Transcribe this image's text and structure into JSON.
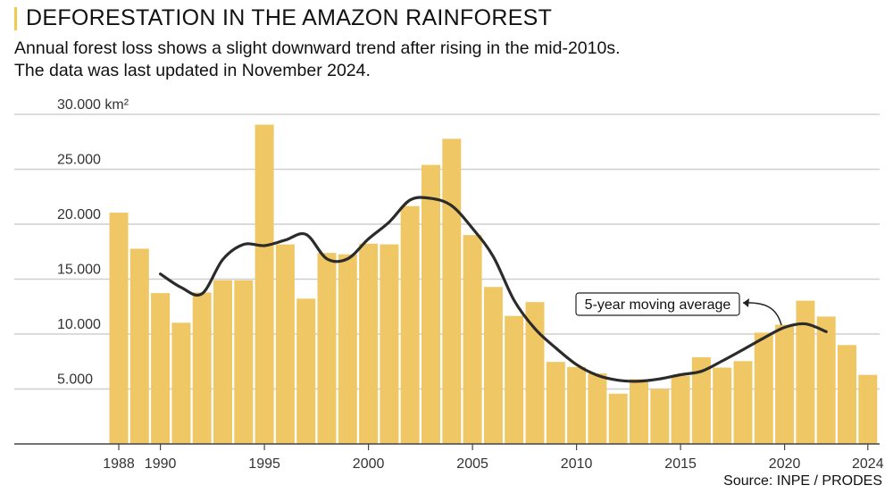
{
  "title": "DEFORESTATION IN THE AMAZON RAINFOREST",
  "subtitle_lines": [
    "Annual forest loss shows a slight downward trend after rising in the mid-2010s.",
    "The data was last updated in November 2024."
  ],
  "source": "Source: INPE / PRODES",
  "colors": {
    "bar": "#efc865",
    "line": "#2b2b2b",
    "grid": "#cfcfcf",
    "accent": "#f2c94c"
  },
  "chart_data": {
    "type": "bar",
    "x": [
      1988,
      1989,
      1990,
      1991,
      1992,
      1993,
      1994,
      1995,
      1996,
      1997,
      1998,
      1999,
      2000,
      2001,
      2002,
      2003,
      2004,
      2005,
      2006,
      2007,
      2008,
      2009,
      2010,
      2011,
      2012,
      2013,
      2014,
      2015,
      2016,
      2017,
      2018,
      2019,
      2020,
      2021,
      2022,
      2023,
      2024
    ],
    "values": [
      21050,
      17770,
      13730,
      11030,
      13786,
      14896,
      14896,
      29059,
      18161,
      13227,
      17383,
      17259,
      18226,
      18165,
      21651,
      25396,
      27772,
      19014,
      14286,
      11651,
      12911,
      7464,
      7000,
      6418,
      4571,
      5891,
      5012,
      6207,
      7893,
      6947,
      7536,
      10129,
      10851,
      13038,
      11594,
      9001,
      6288
    ],
    "series": [
      {
        "values": [
          21050,
          17770,
          13730,
          11030,
          13786,
          14896,
          14896,
          29059,
          18161,
          13227,
          17383,
          17259,
          18226,
          18165,
          21651,
          25396,
          27772,
          19014,
          14286,
          11651,
          12911,
          7464,
          7000,
          6418,
          4571,
          5891,
          5012,
          6207,
          7893,
          6947,
          7536,
          10129,
          10851,
          13038,
          11594,
          9001,
          6288
        ]
      },
      {
        "name": "5-year moving average",
        "x": [
          1990,
          1991,
          1992,
          1993,
          1994,
          1995,
          1996,
          1997,
          1998,
          1999,
          2000,
          2001,
          2002,
          2003,
          2004,
          2005,
          2006,
          2007,
          2008,
          2009,
          2010,
          2011,
          2012,
          2013,
          2014,
          2015,
          2016,
          2017,
          2018,
          2019,
          2020,
          2021,
          2022
        ],
        "values": [
          15470,
          14240,
          13670,
          16790,
          18160,
          18050,
          18550,
          19070,
          16850,
          16850,
          18660,
          20200,
          22200,
          22350,
          21680,
          19620,
          17050,
          13070,
          10490,
          8740,
          7220,
          6250,
          5800,
          5710,
          5920,
          6300,
          6610,
          7550,
          8580,
          9640,
          10610,
          10930,
          10220
        ]
      }
    ],
    "xticks": [
      1988,
      1990,
      1995,
      2000,
      2005,
      2010,
      2015,
      2020,
      2024
    ],
    "yticks": [
      5000,
      10000,
      15000,
      20000,
      25000,
      30000
    ],
    "ytick_labels": [
      "5.000",
      "10.000",
      "15.000",
      "20.000",
      "25.000",
      "30.000 km²"
    ],
    "ylim": [
      0,
      30000
    ],
    "annotation": "5-year moving average",
    "grid": true
  }
}
